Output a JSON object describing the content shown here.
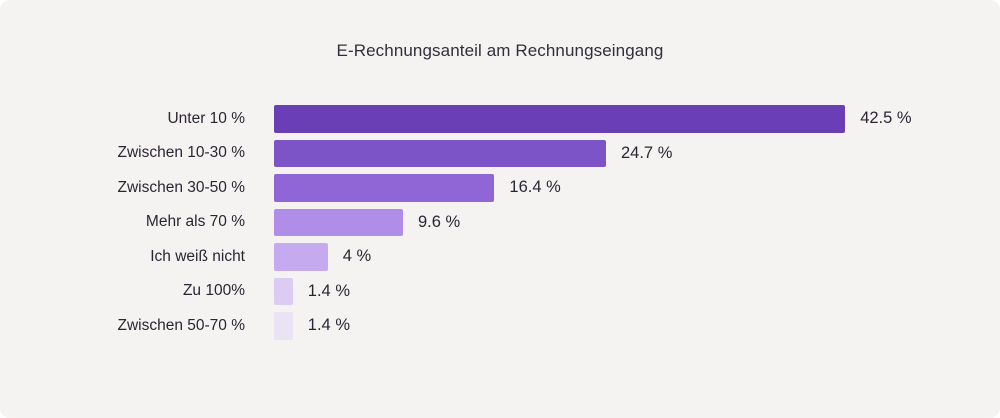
{
  "title": "E-Rechnungsanteil am Rechnungseingang",
  "chart_data": {
    "type": "bar",
    "orientation": "horizontal",
    "title": "E-Rechnungsanteil am Rechnungseingang",
    "categories": [
      "Unter 10 %",
      "Zwischen 10-30 %",
      "Zwischen 30-50 %",
      "Mehr als 70 %",
      "Ich weiß nicht",
      "Zu 100%",
      "Zwischen 50-70 %"
    ],
    "values": [
      42.5,
      24.7,
      16.4,
      9.6,
      4,
      1.4,
      1.4
    ],
    "value_labels": [
      "42.5 %",
      "24.7 %",
      "16.4 %",
      "9.6 %",
      "4 %",
      "1.4 %",
      "1.4 %"
    ],
    "bar_colors": [
      "#6a3eb5",
      "#7d54c7",
      "#9065d6",
      "#b08ee7",
      "#c6aaef",
      "#dccbf2",
      "#eae3f4"
    ],
    "xlabel": "",
    "ylabel": "",
    "xlim": [
      0,
      45
    ],
    "grid": false,
    "legend": false,
    "background_color": "#f5f3f1",
    "text_color": "#2b2533"
  }
}
